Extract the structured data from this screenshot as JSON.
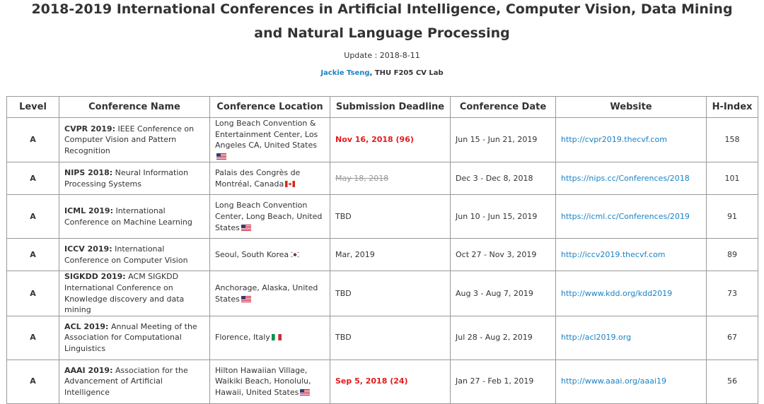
{
  "page": {
    "title": "2018-2019 International Conferences in Artificial Intelligence, Computer Vision, Data Mining and Natural Language Processing",
    "update": "Update : 2018-8-11",
    "author": "Jackie Tseng",
    "lab": ", THU F205 CV Lab"
  },
  "table": {
    "headers": [
      "Level",
      "Conference Name",
      "Conference Location",
      "Submission Deadline",
      "Conference Date",
      "Website",
      "H-Index"
    ],
    "rows": [
      {
        "level": "A",
        "acronym": "CVPR 2019:",
        "name": " IEEE Conference on Computer Vision and Pattern Recognition",
        "location": "Long Beach Convention & Entertainment Center, Los Angeles CA, United States",
        "flag": "us-flag",
        "deadline": "Nov 16, 2018 (96)",
        "deadline_style": "hot",
        "date": "Jun 15 - Jun 21, 2019",
        "website": "http://cvpr2019.thecvf.com",
        "hindex": "158"
      },
      {
        "level": "A",
        "acronym": "NIPS 2018:",
        "name": " Neural Information Processing Systems",
        "location": "Palais des Congrès de Montréal, Canada",
        "flag": "canada-flag",
        "deadline": "May 18, 2018",
        "deadline_style": "passed",
        "date": "Dec 3 - Dec 8, 2018",
        "website": "https://nips.cc/Conferences/2018",
        "hindex": "101"
      },
      {
        "level": "A",
        "acronym": "ICML 2019:",
        "name": " International Conference on Machine Learning",
        "location": "Long Beach Convention Center, Long Beach, United States",
        "flag": "us-flag",
        "deadline": "TBD",
        "deadline_style": "normal",
        "date": "Jun 10 - Jun 15, 2019",
        "website": "https://icml.cc/Conferences/2019",
        "hindex": "91"
      },
      {
        "level": "A",
        "acronym": "ICCV 2019:",
        "name": " International Conference on Computer Vision",
        "location": "Seoul, South Korea",
        "flag": "korea-flag",
        "deadline": "Mar, 2019",
        "deadline_style": "normal",
        "date": "Oct 27 - Nov 3, 2019",
        "website": "http://iccv2019.thecvf.com",
        "hindex": "89"
      },
      {
        "level": "A",
        "acronym": "SIGKDD 2019:",
        "name": " ACM SIGKDD International Conference on Knowledge discovery and data mining",
        "location": "Anchorage, Alaska, United States",
        "flag": "us-flag",
        "deadline": "TBD",
        "deadline_style": "normal",
        "date": "Aug 3 - Aug 7, 2019",
        "website": "http://www.kdd.org/kdd2019",
        "hindex": "73"
      },
      {
        "level": "A",
        "acronym": "ACL 2019:",
        "name": " Annual Meeting of the Association for Computational Linguistics",
        "location": "Florence, Italy",
        "flag": "italy-flag",
        "deadline": "TBD",
        "deadline_style": "normal",
        "date": "Jul 28 - Aug 2, 2019",
        "website": "http://acl2019.org",
        "hindex": "67"
      },
      {
        "level": "A",
        "acronym": "AAAI 2019:",
        "name": " Association for the Advancement of Artificial Intelligence",
        "location": "Hilton Hawaiian Village, Waikiki Beach, Honolulu, Hawaii, United States",
        "flag": "us-flag",
        "deadline": "Sep 5, 2018 (24)",
        "deadline_style": "hot",
        "date": "Jan 27 - Feb 1, 2019",
        "website": "http://www.aaai.org/aaai19",
        "hindex": "56"
      }
    ]
  },
  "colors": {
    "link": "#1a83c4",
    "deadline_hot": "#e31b1b",
    "border": "#999999",
    "text": "#333333"
  }
}
